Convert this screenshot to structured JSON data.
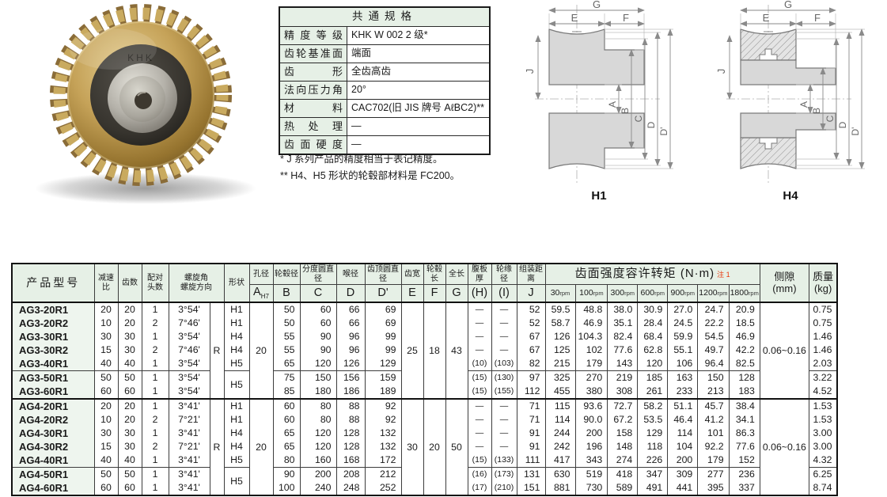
{
  "photo": {
    "engraving": "KHK"
  },
  "spec_table": {
    "title": "共通规格",
    "rows": [
      {
        "label": "精度等级",
        "value": "KHK W 002 2 级*"
      },
      {
        "label": "齿轮基准面",
        "value": "端面"
      },
      {
        "label": "齿形",
        "value": "全齿高齿"
      },
      {
        "label": "法向压力角",
        "value": "20°"
      },
      {
        "label": "材料",
        "value": "CAC702(旧 JIS 牌号 AℓBC2)**"
      },
      {
        "label": "热处理",
        "value": "—"
      },
      {
        "label": "齿面硬度",
        "value": "—"
      }
    ],
    "notes": [
      "* J 系列产品的精度相当于表记精度。",
      "** H4、H5 形状的轮毂部材料是 FC200。"
    ]
  },
  "drawings": {
    "dims": {
      "G": "G",
      "E": "E",
      "F": "F",
      "J": "J",
      "A": "A",
      "B": "B",
      "C": "C",
      "D": "D",
      "Dp": "D'"
    },
    "h1": {
      "label": "H1"
    },
    "h4": {
      "label": "H4"
    }
  },
  "big_table": {
    "headers": {
      "model": "产品型号",
      "ratio": "减速比",
      "teeth": "齿数",
      "starts": "配对\n头数",
      "angle": "螺旋角\n螺旋方向",
      "shape": "形状",
      "bore": "孔径",
      "bore2": {
        "main": "A",
        "sub": "H7"
      },
      "hub_dia": "轮毂径",
      "hub_dia2": "B",
      "pitch_dia": "分度圆直径",
      "pitch_dia2": "C",
      "throat_dia": "喉径",
      "throat_dia2": "D",
      "tip_dia": "齿顶圆直径",
      "tip_dia2": "D'",
      "face_width": "齿宽",
      "face_width2": "E",
      "hub_len": "轮毂长",
      "hub_len2": "F",
      "total_len": "全长",
      "total_len2": "G",
      "web_thk": "腹板厚",
      "web_thk2": "(H)",
      "rim_dia": "轮缘径",
      "rim_dia2": "(I)",
      "mount_dist": "组装距离",
      "mount_dist2": "J",
      "torque_title": "齿面强度容许转矩 (N·m)",
      "torque_note": "注 1",
      "rpm": [
        "30",
        "100",
        "300",
        "600",
        "900",
        "1200",
        "1800"
      ],
      "rpm_unit": "rpm",
      "backlash": "侧隙\n(mm)",
      "mass": "质量\n(kg)"
    },
    "groups": [
      {
        "merged": {
          "direction": "R",
          "bore": "20",
          "E": "25",
          "F": "18",
          "G": "43",
          "backlash": "0.06~0.16"
        },
        "rows": [
          [
            "AG3-20R1",
            "20",
            "20",
            "1",
            "3°54'",
            "H1",
            "50",
            "60",
            "66",
            "69",
            "—",
            "—",
            "52",
            "59.5",
            "48.8",
            "38.0",
            "30.9",
            "27.0",
            "24.7",
            "20.9",
            "0.75"
          ],
          [
            "AG3-20R2",
            "10",
            "20",
            "2",
            "7°46'",
            "H1",
            "50",
            "60",
            "66",
            "69",
            "—",
            "—",
            "52",
            "58.7",
            "46.9",
            "35.1",
            "28.4",
            "24.5",
            "22.2",
            "18.5",
            "0.75"
          ],
          [
            "AG3-30R1",
            "30",
            "30",
            "1",
            "3°54'",
            "H4",
            "55",
            "90",
            "96",
            "99",
            "—",
            "—",
            "67",
            "126",
            "104.3",
            "82.4",
            "68.4",
            "59.9",
            "54.5",
            "46.9",
            "1.46"
          ],
          [
            "AG3-30R2",
            "15",
            "30",
            "2",
            "7°46'",
            "H4",
            "55",
            "90",
            "96",
            "99",
            "—",
            "—",
            "67",
            "125",
            "102",
            "77.6",
            "62.8",
            "55.1",
            "49.7",
            "42.2",
            "1.46"
          ],
          [
            "AG3-40R1",
            "40",
            "40",
            "1",
            "3°54'",
            "H5",
            "65",
            "120",
            "126",
            "129",
            "(10)",
            "(103)",
            "82",
            "215",
            "179",
            "143",
            "120",
            "106",
            "96.4",
            "82.5",
            "2.03"
          ],
          [
            "AG3-50R1",
            "50",
            "50",
            "1",
            "3°54'",
            "H5",
            "75",
            "150",
            "156",
            "159",
            "(15)",
            "(130)",
            "97",
            "325",
            "270",
            "219",
            "185",
            "163",
            "150",
            "128",
            "3.22"
          ],
          [
            "AG3-60R1",
            "60",
            "60",
            "1",
            "3°54'",
            "H5",
            "85",
            "180",
            "186",
            "189",
            "(15)",
            "(155)",
            "112",
            "455",
            "380",
            "308",
            "261",
            "233",
            "213",
            "183",
            "4.52"
          ]
        ]
      },
      {
        "merged": {
          "direction": "R",
          "bore": "20",
          "E": "30",
          "F": "20",
          "G": "50",
          "backlash": "0.06~0.16"
        },
        "rows": [
          [
            "AG4-20R1",
            "20",
            "20",
            "1",
            "3°41'",
            "H1",
            "60",
            "80",
            "88",
            "92",
            "—",
            "—",
            "71",
            "115",
            "93.6",
            "72.7",
            "58.2",
            "51.1",
            "45.7",
            "38.4",
            "1.53"
          ],
          [
            "AG4-20R2",
            "10",
            "20",
            "2",
            "7°21'",
            "H1",
            "60",
            "80",
            "88",
            "92",
            "—",
            "—",
            "71",
            "114",
            "90.0",
            "67.2",
            "53.5",
            "46.4",
            "41.2",
            "34.1",
            "1.53"
          ],
          [
            "AG4-30R1",
            "30",
            "30",
            "1",
            "3°41'",
            "H4",
            "65",
            "120",
            "128",
            "132",
            "—",
            "—",
            "91",
            "244",
            "200",
            "158",
            "129",
            "114",
            "101",
            "86.3",
            "3.00"
          ],
          [
            "AG4-30R2",
            "15",
            "30",
            "2",
            "7°21'",
            "H4",
            "65",
            "120",
            "128",
            "132",
            "—",
            "—",
            "91",
            "242",
            "196",
            "148",
            "118",
            "104",
            "92.2",
            "77.6",
            "3.00"
          ],
          [
            "AG4-40R1",
            "40",
            "40",
            "1",
            "3°41'",
            "H5",
            "80",
            "160",
            "168",
            "172",
            "(15)",
            "(133)",
            "111",
            "417",
            "343",
            "274",
            "226",
            "200",
            "179",
            "152",
            "4.32"
          ],
          [
            "AG4-50R1",
            "50",
            "50",
            "1",
            "3°41'",
            "H5",
            "90",
            "200",
            "208",
            "212",
            "(16)",
            "(173)",
            "131",
            "630",
            "519",
            "418",
            "347",
            "309",
            "277",
            "236",
            "6.25"
          ],
          [
            "AG4-60R1",
            "60",
            "60",
            "1",
            "3°41'",
            "H5",
            "100",
            "240",
            "248",
            "252",
            "(17)",
            "(210)",
            "151",
            "881",
            "730",
            "589",
            "491",
            "441",
            "395",
            "337",
            "8.74"
          ]
        ]
      }
    ]
  }
}
